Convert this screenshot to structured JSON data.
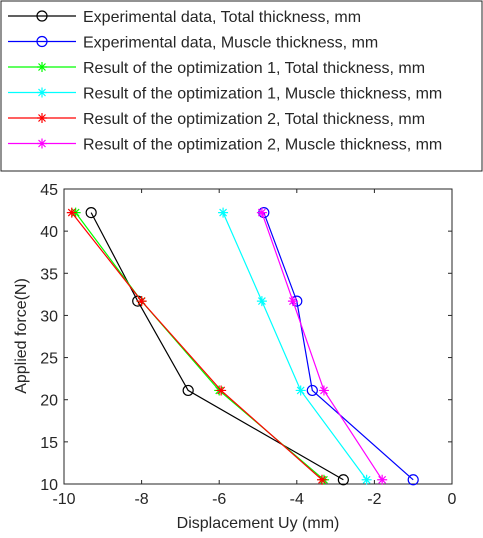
{
  "chart_data": {
    "type": "line",
    "x_label": "Displacement Uy (mm)",
    "y_label": "Applied force(N)",
    "xlim": [
      -10,
      0
    ],
    "xticks": [
      -10,
      -8,
      -6,
      -4,
      -2,
      0
    ],
    "ylim": [
      10,
      45
    ],
    "yticks": [
      10,
      15,
      20,
      25,
      30,
      35,
      40,
      45
    ],
    "legend": "top",
    "series": [
      {
        "name": "Experimental data, Total thickness, mm",
        "color": "#000000",
        "marker": "o",
        "x": [
          -9.3,
          -8.1,
          -6.8,
          -2.8
        ],
        "values": [
          42.2,
          31.7,
          21.1,
          10.5
        ]
      },
      {
        "name": "Experimental data, Muscle thickness, mm",
        "color": "#0000ff",
        "marker": "o",
        "x": [
          -4.85,
          -4.0,
          -3.6,
          -1.0
        ],
        "values": [
          42.2,
          31.7,
          21.1,
          10.5
        ]
      },
      {
        "name": "Result of the optimization 1, Total thickness, mm",
        "color": "#00ff00",
        "marker": "*",
        "x": [
          -9.7,
          -8.0,
          -6.0,
          -3.3
        ],
        "values": [
          42.2,
          31.7,
          21.1,
          10.5
        ]
      },
      {
        "name": "Result of the optimization 1, Muscle thickness, mm",
        "color": "#00ffff",
        "marker": "*",
        "x": [
          -5.9,
          -4.9,
          -3.9,
          -2.2
        ],
        "values": [
          42.2,
          31.7,
          21.1,
          10.5
        ]
      },
      {
        "name": "Result of the optimization 2, Total thickness, mm",
        "color": "#ff0000",
        "marker": "*",
        "x": [
          -9.8,
          -8.0,
          -5.95,
          -3.35
        ],
        "values": [
          42.2,
          31.7,
          21.1,
          10.5
        ]
      },
      {
        "name": "Result of the optimization 2, Muscle thickness, mm",
        "color": "#ff00ff",
        "marker": "*",
        "x": [
          -4.9,
          -4.1,
          -3.3,
          -1.8
        ],
        "values": [
          42.2,
          31.7,
          21.1,
          10.5
        ]
      }
    ]
  }
}
